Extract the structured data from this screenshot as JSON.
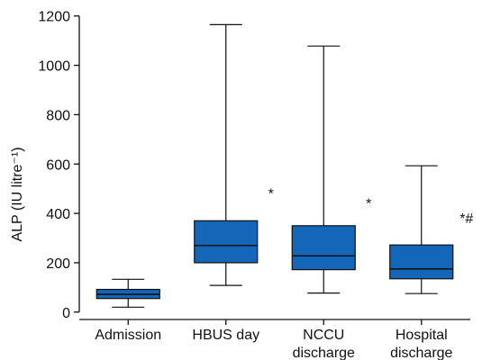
{
  "chart_data": {
    "type": "boxplot",
    "categories": [
      [
        "Admission"
      ],
      [
        "HBUS day"
      ],
      [
        "NCCU",
        "discharge"
      ],
      [
        "Hospital",
        "discharge"
      ]
    ],
    "boxes": [
      {
        "min": 20,
        "q1": 55,
        "median": 72,
        "q3": 92,
        "max": 133
      },
      {
        "min": 108,
        "q1": 200,
        "median": 270,
        "q3": 370,
        "max": 1165
      },
      {
        "min": 77,
        "q1": 172,
        "median": 228,
        "q3": 350,
        "max": 1078
      },
      {
        "min": 75,
        "q1": 135,
        "median": 175,
        "q3": 272,
        "max": 593
      }
    ],
    "annotations": [
      {
        "category_index": 1,
        "text": "*",
        "value": 460
      },
      {
        "category_index": 2,
        "text": "*",
        "value": 420
      },
      {
        "category_index": 3,
        "text": "*#",
        "value": 360
      }
    ],
    "ylabel": "ALP (IU litre⁻¹)",
    "yticks": [
      0,
      200,
      400,
      600,
      800,
      1000,
      1200
    ],
    "ylim": [
      -30,
      1210
    ],
    "box_color": "#1466b8",
    "grid": false,
    "legend": "none"
  }
}
